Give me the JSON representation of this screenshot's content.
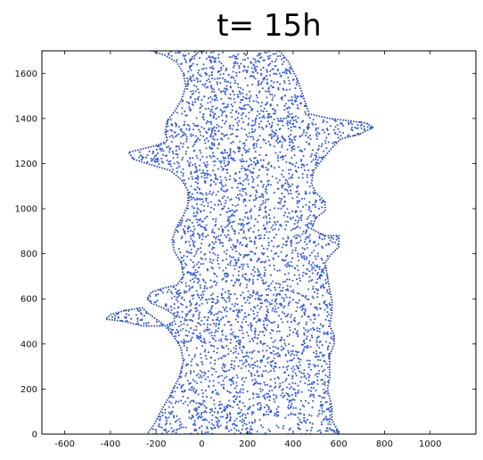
{
  "chart_data": {
    "type": "scatter",
    "title": "t= 15h",
    "xlabel": "",
    "ylabel": "",
    "xlim": [
      -700,
      1200
    ],
    "ylim": [
      0,
      1700
    ],
    "grid": false,
    "x_ticks": [
      -600,
      -400,
      -200,
      0,
      200,
      400,
      600,
      800,
      1000
    ],
    "y_ticks": [
      0,
      200,
      400,
      600,
      800,
      1000,
      1200,
      1400,
      1600
    ],
    "point_color": "#3a5fcd",
    "boundary_color": "#2b4aa8",
    "series": [
      {
        "n_points_approx": 4200,
        "left_boundary": [
          [
            -220,
            1700
          ],
          [
            -160,
            1680
          ],
          [
            -110,
            1650
          ],
          [
            -80,
            1600
          ],
          [
            -70,
            1540
          ],
          [
            -90,
            1480
          ],
          [
            -120,
            1430
          ],
          [
            -150,
            1390
          ],
          [
            -160,
            1340
          ],
          [
            -150,
            1300
          ],
          [
            -200,
            1280
          ],
          [
            -280,
            1260
          ],
          [
            -320,
            1250
          ],
          [
            -300,
            1220
          ],
          [
            -240,
            1200
          ],
          [
            -140,
            1170
          ],
          [
            -90,
            1130
          ],
          [
            -60,
            1080
          ],
          [
            -60,
            1020
          ],
          [
            -80,
            970
          ],
          [
            -110,
            920
          ],
          [
            -130,
            860
          ],
          [
            -120,
            810
          ],
          [
            -90,
            760
          ],
          [
            -80,
            700
          ],
          [
            -110,
            660
          ],
          [
            -160,
            650
          ],
          [
            -220,
            630
          ],
          [
            -240,
            600
          ],
          [
            -220,
            580
          ],
          [
            -170,
            560
          ],
          [
            -120,
            530
          ],
          [
            -120,
            500
          ],
          [
            -160,
            480
          ],
          [
            -260,
            480
          ],
          [
            -340,
            500
          ],
          [
            -420,
            510
          ],
          [
            -400,
            530
          ],
          [
            -330,
            550
          ],
          [
            -260,
            560
          ],
          [
            -240,
            540
          ],
          [
            -160,
            480
          ],
          [
            -120,
            430
          ],
          [
            -90,
            380
          ],
          [
            -80,
            320
          ],
          [
            -100,
            250
          ],
          [
            -140,
            170
          ],
          [
            -180,
            100
          ],
          [
            -210,
            40
          ],
          [
            -240,
            0
          ]
        ],
        "right_boundary": [
          [
            340,
            1700
          ],
          [
            380,
            1650
          ],
          [
            420,
            1570
          ],
          [
            450,
            1480
          ],
          [
            470,
            1420
          ],
          [
            560,
            1400
          ],
          [
            640,
            1390
          ],
          [
            720,
            1380
          ],
          [
            750,
            1360
          ],
          [
            690,
            1330
          ],
          [
            610,
            1310
          ],
          [
            570,
            1270
          ],
          [
            530,
            1220
          ],
          [
            490,
            1170
          ],
          [
            480,
            1110
          ],
          [
            500,
            1070
          ],
          [
            540,
            1030
          ],
          [
            540,
            990
          ],
          [
            500,
            960
          ],
          [
            480,
            910
          ],
          [
            540,
            880
          ],
          [
            600,
            880
          ],
          [
            600,
            830
          ],
          [
            560,
            790
          ],
          [
            540,
            760
          ],
          [
            550,
            700
          ],
          [
            560,
            640
          ],
          [
            570,
            590
          ],
          [
            570,
            540
          ],
          [
            560,
            480
          ],
          [
            580,
            440
          ],
          [
            580,
            400
          ],
          [
            560,
            350
          ],
          [
            560,
            300
          ],
          [
            560,
            250
          ],
          [
            550,
            200
          ],
          [
            560,
            160
          ],
          [
            570,
            120
          ],
          [
            570,
            60
          ],
          [
            600,
            10
          ],
          [
            590,
            0
          ]
        ]
      }
    ]
  }
}
